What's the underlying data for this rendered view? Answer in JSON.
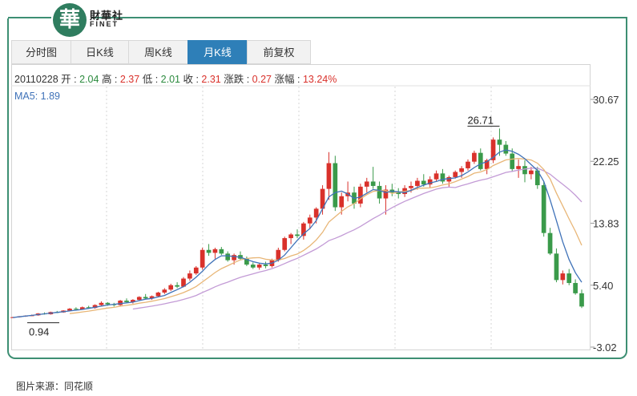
{
  "brand": {
    "logo_char": "華",
    "name_cn": "財華社",
    "name_en": "FINET"
  },
  "tabs": [
    {
      "label": "分时图",
      "active": false
    },
    {
      "label": "日K线",
      "active": false
    },
    {
      "label": "周K线",
      "active": false
    },
    {
      "label": "月K线",
      "active": true
    },
    {
      "label": "前复权",
      "active": false
    }
  ],
  "info": {
    "date": "20110228",
    "open_label": "开",
    "open": "2.04",
    "high_label": "高",
    "high": "2.37",
    "low_label": "低",
    "low": "2.01",
    "close_label": "收",
    "close": "2.31",
    "change_label": "涨跌",
    "change": "0.27",
    "pct_label": "涨幅",
    "pct": "13.24%"
  },
  "ma5": {
    "label": "MA5:",
    "value": "1.89"
  },
  "source": "图片来源：同花顺",
  "colors": {
    "up": "#d9312b",
    "down": "#3a9a4a",
    "ma5": "#3f72b8",
    "ma10": "#e8b677",
    "ma20": "#c39bd6",
    "active_tab": "#2e7fb8",
    "frame": "#3d8f73"
  },
  "chart_data": {
    "type": "candlestick",
    "y_ticks": [
      "30.67",
      "22.25",
      "13.83",
      "5.40",
      "-3.02"
    ],
    "ylim": [
      -3.02,
      30.67
    ],
    "annotations": {
      "max": "26.71",
      "min": "0.94"
    },
    "candles": [
      [
        1.0,
        1.1,
        0.95,
        1.05
      ],
      [
        1.05,
        1.2,
        1.0,
        1.15
      ],
      [
        1.15,
        1.3,
        1.1,
        1.25
      ],
      [
        1.25,
        1.4,
        1.2,
        1.3
      ],
      [
        1.3,
        1.6,
        1.25,
        1.55
      ],
      [
        1.55,
        1.7,
        1.4,
        1.45
      ],
      [
        1.45,
        1.8,
        1.4,
        1.75
      ],
      [
        1.75,
        1.9,
        1.6,
        1.7
      ],
      [
        1.7,
        2.0,
        1.65,
        1.95
      ],
      [
        1.95,
        2.3,
        1.9,
        2.2
      ],
      [
        2.2,
        2.4,
        2.0,
        2.1
      ],
      [
        2.1,
        2.5,
        2.05,
        2.4
      ],
      [
        2.4,
        2.6,
        2.2,
        2.3
      ],
      [
        2.3,
        2.8,
        2.2,
        2.7
      ],
      [
        2.7,
        3.2,
        2.6,
        3.0
      ],
      [
        3.0,
        3.1,
        2.6,
        2.8
      ],
      [
        2.8,
        3.0,
        2.5,
        2.7
      ],
      [
        2.7,
        3.4,
        2.6,
        3.3
      ],
      [
        3.3,
        3.6,
        3.0,
        3.1
      ],
      [
        3.1,
        3.5,
        2.9,
        3.4
      ],
      [
        3.4,
        3.9,
        3.3,
        3.8
      ],
      [
        3.8,
        4.2,
        3.5,
        3.6
      ],
      [
        3.6,
        4.0,
        3.4,
        3.9
      ],
      [
        3.9,
        4.5,
        3.8,
        4.4
      ],
      [
        4.4,
        5.0,
        4.2,
        4.8
      ],
      [
        4.8,
        5.6,
        4.6,
        5.4
      ],
      [
        5.4,
        5.8,
        5.0,
        5.2
      ],
      [
        5.2,
        6.5,
        5.1,
        6.3
      ],
      [
        6.3,
        7.4,
        6.0,
        7.0
      ],
      [
        7.0,
        8.0,
        6.8,
        7.8
      ],
      [
        7.8,
        10.5,
        7.5,
        10.2
      ],
      [
        10.2,
        11.0,
        9.4,
        9.8
      ],
      [
        9.8,
        10.5,
        9.0,
        10.3
      ],
      [
        10.3,
        10.6,
        9.5,
        9.7
      ],
      [
        9.7,
        10.0,
        8.6,
        8.8
      ],
      [
        8.8,
        9.7,
        8.2,
        9.5
      ],
      [
        9.5,
        10.0,
        8.8,
        9.0
      ],
      [
        9.0,
        9.3,
        8.0,
        8.2
      ],
      [
        8.2,
        8.5,
        7.6,
        7.8
      ],
      [
        7.8,
        8.4,
        7.5,
        8.2
      ],
      [
        8.2,
        8.6,
        7.7,
        8.0
      ],
      [
        8.0,
        9.0,
        7.8,
        8.8
      ],
      [
        8.8,
        10.5,
        8.6,
        10.2
      ],
      [
        10.2,
        12.0,
        10.0,
        11.8
      ],
      [
        11.8,
        12.5,
        11.0,
        12.3
      ],
      [
        12.3,
        13.0,
        11.8,
        12.1
      ],
      [
        12.1,
        14.0,
        11.6,
        13.8
      ],
      [
        13.8,
        15.0,
        13.0,
        14.6
      ],
      [
        14.6,
        16.0,
        13.8,
        15.8
      ],
      [
        15.8,
        19.0,
        15.0,
        18.5
      ],
      [
        18.5,
        23.5,
        17.0,
        22.0
      ],
      [
        22.0,
        23.0,
        15.5,
        16.0
      ],
      [
        16.0,
        18.0,
        15.0,
        17.5
      ],
      [
        17.5,
        19.5,
        16.8,
        18.0
      ],
      [
        18.0,
        18.8,
        15.8,
        16.5
      ],
      [
        16.5,
        19.2,
        16.0,
        18.8
      ],
      [
        18.8,
        20.0,
        18.0,
        19.5
      ],
      [
        19.5,
        21.5,
        18.5,
        18.9
      ],
      [
        18.9,
        19.5,
        16.5,
        17.2
      ],
      [
        17.2,
        19.0,
        15.0,
        18.4
      ],
      [
        18.4,
        19.2,
        17.5,
        18.0
      ],
      [
        18.0,
        18.6,
        17.2,
        17.8
      ],
      [
        17.8,
        19.0,
        17.4,
        18.6
      ],
      [
        18.6,
        19.5,
        18.0,
        18.9
      ],
      [
        18.9,
        20.0,
        18.4,
        19.6
      ],
      [
        19.6,
        20.5,
        18.8,
        19.1
      ],
      [
        19.1,
        20.2,
        18.7,
        19.8
      ],
      [
        19.8,
        21.0,
        19.5,
        20.6
      ],
      [
        20.6,
        21.2,
        19.2,
        19.5
      ],
      [
        19.5,
        20.3,
        18.8,
        20.1
      ],
      [
        20.1,
        21.0,
        19.9,
        20.8
      ],
      [
        20.8,
        21.6,
        20.0,
        21.3
      ],
      [
        21.3,
        22.5,
        21.0,
        22.2
      ],
      [
        22.2,
        23.7,
        21.9,
        23.4
      ],
      [
        23.4,
        24.0,
        21.0,
        21.2
      ],
      [
        21.2,
        22.6,
        20.5,
        22.4
      ],
      [
        22.4,
        25.5,
        22.0,
        25.2
      ],
      [
        25.2,
        26.71,
        23.0,
        24.5
      ],
      [
        24.5,
        25.0,
        23.0,
        23.3
      ],
      [
        23.3,
        24.0,
        20.8,
        21.2
      ],
      [
        21.2,
        22.5,
        20.0,
        21.6
      ],
      [
        21.6,
        22.4,
        19.4,
        20.5
      ],
      [
        20.5,
        21.5,
        19.8,
        21.0
      ],
      [
        21.0,
        21.5,
        18.5,
        19.0
      ],
      [
        19.0,
        19.5,
        12.0,
        12.5
      ],
      [
        12.5,
        13.2,
        9.5,
        9.7
      ],
      [
        9.7,
        10.4,
        5.8,
        6.1
      ],
      [
        6.1,
        7.4,
        5.5,
        7.0
      ],
      [
        7.0,
        7.6,
        5.4,
        5.7
      ],
      [
        5.7,
        6.2,
        4.1,
        4.3
      ],
      [
        4.3,
        4.8,
        2.3,
        2.5
      ]
    ],
    "ma5": [
      1.0,
      1.1,
      1.2,
      1.3,
      1.4,
      1.5,
      1.6,
      1.7,
      1.8,
      1.9,
      2.0,
      2.1,
      2.25,
      2.4,
      2.55,
      2.7,
      2.8,
      2.9,
      3.0,
      3.1,
      3.3,
      3.5,
      3.6,
      3.8,
      4.0,
      4.4,
      4.8,
      5.2,
      5.8,
      6.5,
      7.3,
      8.2,
      8.9,
      9.4,
      9.4,
      9.3,
      9.2,
      8.9,
      8.6,
      8.4,
      8.3,
      8.4,
      8.8,
      9.5,
      10.5,
      11.5,
      12.4,
      13.1,
      14.2,
      15.8,
      17.4,
      18.0,
      18.2,
      17.8,
      17.2,
      17.4,
      17.9,
      18.4,
      18.3,
      18.0,
      18.2,
      18.1,
      18.0,
      18.3,
      18.7,
      19.0,
      19.3,
      19.5,
      19.8,
      19.9,
      20.0,
      20.3,
      20.8,
      21.4,
      21.9,
      22.2,
      22.8,
      23.5,
      23.8,
      23.6,
      23.2,
      22.6,
      21.8,
      21.0,
      19.5,
      17.0,
      14.2,
      11.3,
      8.9,
      7.1,
      5.8
    ]
  }
}
